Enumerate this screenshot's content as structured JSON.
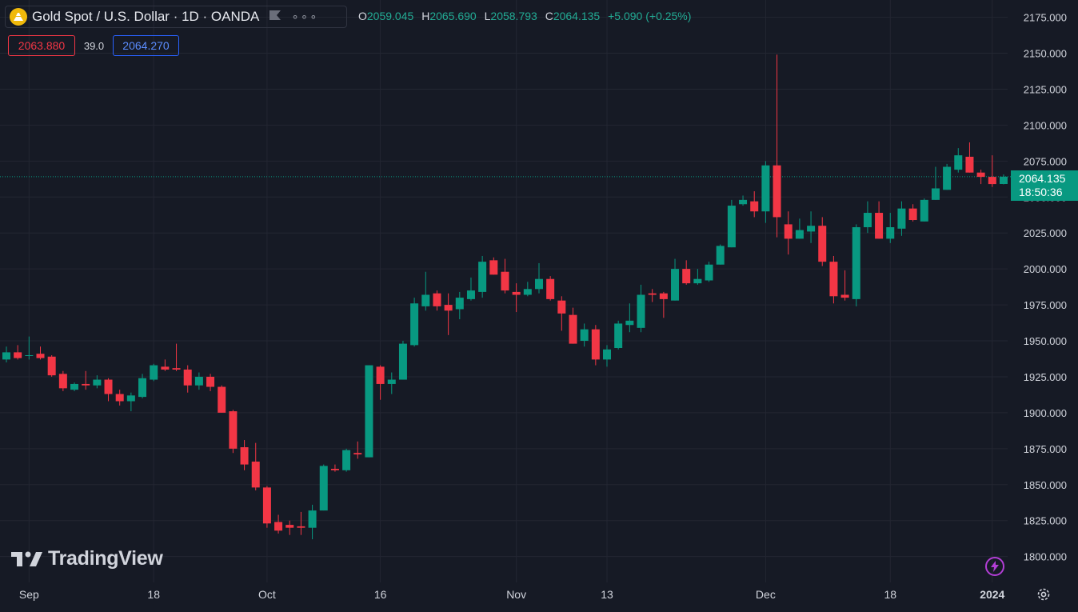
{
  "legend": {
    "symbol": "Gold Spot / U.S. Dollar",
    "interval": "1D",
    "broker": "OANDA",
    "ohlc": {
      "o_label": "O",
      "o": "2059.045",
      "h_label": "H",
      "h": "2065.690",
      "l_label": "L",
      "l": "2058.793",
      "c_label": "C",
      "c": "2064.135",
      "change": "+5.090 (+0.25%)"
    }
  },
  "trade": {
    "sell": "2063.880",
    "spread": "39.0",
    "buy": "2064.270"
  },
  "price_tag": {
    "price": "2064.135",
    "countdown": "18:50:36"
  },
  "watermark": "TradingView",
  "colors": {
    "up": "#089981",
    "down": "#f23645",
    "background": "#161a25",
    "grid": "#232632"
  },
  "icons": [
    "gold-coin-icon",
    "flag-icon",
    "more-dots-icon",
    "tradingview-logo-icon",
    "lightning-icon",
    "gear-icon"
  ],
  "chart_data": {
    "type": "candlestick",
    "y_ticks": [
      "2175.000",
      "2150.000",
      "2125.000",
      "2100.000",
      "2075.000",
      "2050.000",
      "2025.000",
      "2000.000",
      "1975.000",
      "1950.000",
      "1925.000",
      "1900.000",
      "1875.000",
      "1850.000",
      "1825.000",
      "1800.000"
    ],
    "ylim": [
      1782,
      2187
    ],
    "x_ticks": [
      {
        "label": "Sep",
        "i": 2
      },
      {
        "label": "18",
        "i": 13
      },
      {
        "label": "Oct",
        "i": 23
      },
      {
        "label": "16",
        "i": 33
      },
      {
        "label": "Nov",
        "i": 45
      },
      {
        "label": "13",
        "i": 53
      },
      {
        "label": "Dec",
        "i": 67
      },
      {
        "label": "18",
        "i": 78
      },
      {
        "label": "2024",
        "i": 87
      }
    ],
    "candles": [
      {
        "o": 1937,
        "h": 1946,
        "l": 1935,
        "c": 1942
      },
      {
        "o": 1942,
        "h": 1947,
        "l": 1937,
        "c": 1938
      },
      {
        "o": 1940,
        "h": 1953,
        "l": 1937,
        "c": 1940
      },
      {
        "o": 1941,
        "h": 1946,
        "l": 1937,
        "c": 1938
      },
      {
        "o": 1939,
        "h": 1940,
        "l": 1925,
        "c": 1926
      },
      {
        "o": 1927,
        "h": 1929,
        "l": 1915,
        "c": 1917
      },
      {
        "o": 1916,
        "h": 1921,
        "l": 1915,
        "c": 1920
      },
      {
        "o": 1920,
        "h": 1929,
        "l": 1916,
        "c": 1919
      },
      {
        "o": 1919,
        "h": 1926,
        "l": 1917,
        "c": 1923
      },
      {
        "o": 1923,
        "h": 1924,
        "l": 1908,
        "c": 1913
      },
      {
        "o": 1913,
        "h": 1916,
        "l": 1905,
        "c": 1908
      },
      {
        "o": 1908,
        "h": 1914,
        "l": 1901,
        "c": 1912
      },
      {
        "o": 1911,
        "h": 1927,
        "l": 1910,
        "c": 1924
      },
      {
        "o": 1923,
        "h": 1934,
        "l": 1922,
        "c": 1933
      },
      {
        "o": 1932,
        "h": 1937,
        "l": 1929,
        "c": 1930
      },
      {
        "o": 1931,
        "h": 1948,
        "l": 1929,
        "c": 1930
      },
      {
        "o": 1930,
        "h": 1933,
        "l": 1914,
        "c": 1919
      },
      {
        "o": 1919,
        "h": 1928,
        "l": 1916,
        "c": 1925
      },
      {
        "o": 1925,
        "h": 1927,
        "l": 1915,
        "c": 1918
      },
      {
        "o": 1918,
        "h": 1919,
        "l": 1900,
        "c": 1900
      },
      {
        "o": 1901,
        "h": 1902,
        "l": 1872,
        "c": 1875
      },
      {
        "o": 1876,
        "h": 1881,
        "l": 1860,
        "c": 1864
      },
      {
        "o": 1866,
        "h": 1879,
        "l": 1846,
        "c": 1848
      },
      {
        "o": 1848,
        "h": 1849,
        "l": 1820,
        "c": 1823
      },
      {
        "o": 1824,
        "h": 1829,
        "l": 1816,
        "c": 1818
      },
      {
        "o": 1822,
        "h": 1825,
        "l": 1815,
        "c": 1820
      },
      {
        "o": 1821,
        "h": 1831,
        "l": 1815,
        "c": 1820
      },
      {
        "o": 1820,
        "h": 1836,
        "l": 1812,
        "c": 1832
      },
      {
        "o": 1832,
        "h": 1864,
        "l": 1832,
        "c": 1863
      },
      {
        "o": 1861,
        "h": 1864,
        "l": 1859,
        "c": 1860
      },
      {
        "o": 1860,
        "h": 1875,
        "l": 1859,
        "c": 1874
      },
      {
        "o": 1872,
        "h": 1880,
        "l": 1868,
        "c": 1871
      },
      {
        "o": 1869,
        "h": 1933,
        "l": 1869,
        "c": 1933
      },
      {
        "o": 1932,
        "h": 1933,
        "l": 1909,
        "c": 1920
      },
      {
        "o": 1920,
        "h": 1928,
        "l": 1913,
        "c": 1923
      },
      {
        "o": 1923,
        "h": 1950,
        "l": 1923,
        "c": 1948
      },
      {
        "o": 1947,
        "h": 1980,
        "l": 1946,
        "c": 1976
      },
      {
        "o": 1974,
        "h": 1998,
        "l": 1971,
        "c": 1982
      },
      {
        "o": 1983,
        "h": 1985,
        "l": 1971,
        "c": 1974
      },
      {
        "o": 1975,
        "h": 1983,
        "l": 1954,
        "c": 1971
      },
      {
        "o": 1972,
        "h": 1984,
        "l": 1965,
        "c": 1980
      },
      {
        "o": 1979,
        "h": 1994,
        "l": 1978,
        "c": 1985
      },
      {
        "o": 1984,
        "h": 2009,
        "l": 1980,
        "c": 2005
      },
      {
        "o": 2006,
        "h": 2008,
        "l": 1996,
        "c": 1996
      },
      {
        "o": 1998,
        "h": 2007,
        "l": 1983,
        "c": 1985
      },
      {
        "o": 1984,
        "h": 1990,
        "l": 1970,
        "c": 1982
      },
      {
        "o": 1982,
        "h": 1991,
        "l": 1981,
        "c": 1986
      },
      {
        "o": 1986,
        "h": 2004,
        "l": 1983,
        "c": 1993
      },
      {
        "o": 1993,
        "h": 1995,
        "l": 1978,
        "c": 1979
      },
      {
        "o": 1978,
        "h": 1981,
        "l": 1957,
        "c": 1969
      },
      {
        "o": 1968,
        "h": 1973,
        "l": 1948,
        "c": 1948
      },
      {
        "o": 1950,
        "h": 1962,
        "l": 1946,
        "c": 1958
      },
      {
        "o": 1958,
        "h": 1961,
        "l": 1933,
        "c": 1937
      },
      {
        "o": 1937,
        "h": 1947,
        "l": 1932,
        "c": 1944
      },
      {
        "o": 1945,
        "h": 1964,
        "l": 1944,
        "c": 1962
      },
      {
        "o": 1961,
        "h": 1976,
        "l": 1956,
        "c": 1964
      },
      {
        "o": 1959,
        "h": 1989,
        "l": 1956,
        "c": 1982
      },
      {
        "o": 1983,
        "h": 1986,
        "l": 1977,
        "c": 1982
      },
      {
        "o": 1983,
        "h": 1984,
        "l": 1966,
        "c": 1979
      },
      {
        "o": 1978,
        "h": 2007,
        "l": 1978,
        "c": 2000
      },
      {
        "o": 2000,
        "h": 2006,
        "l": 1989,
        "c": 1990
      },
      {
        "o": 1990,
        "h": 2000,
        "l": 1989,
        "c": 1993
      },
      {
        "o": 1992,
        "h": 2005,
        "l": 1991,
        "c": 2003
      },
      {
        "o": 2003,
        "h": 2017,
        "l": 2003,
        "c": 2016
      },
      {
        "o": 2015,
        "h": 2048,
        "l": 2015,
        "c": 2044
      },
      {
        "o": 2045,
        "h": 2051,
        "l": 2044,
        "c": 2048
      },
      {
        "o": 2047,
        "h": 2054,
        "l": 2036,
        "c": 2040
      },
      {
        "o": 2040,
        "h": 2075,
        "l": 2032,
        "c": 2072
      },
      {
        "o": 2072,
        "h": 2149,
        "l": 2022,
        "c": 2036
      },
      {
        "o": 2031,
        "h": 2040,
        "l": 2010,
        "c": 2021
      },
      {
        "o": 2021,
        "h": 2035,
        "l": 2021,
        "c": 2027
      },
      {
        "o": 2026,
        "h": 2040,
        "l": 2018,
        "c": 2030
      },
      {
        "o": 2030,
        "h": 2036,
        "l": 2002,
        "c": 2005
      },
      {
        "o": 2005,
        "h": 2009,
        "l": 1976,
        "c": 1981
      },
      {
        "o": 1982,
        "h": 1999,
        "l": 1978,
        "c": 1980
      },
      {
        "o": 1979,
        "h": 2031,
        "l": 1974,
        "c": 2029
      },
      {
        "o": 2029,
        "h": 2047,
        "l": 2025,
        "c": 2039
      },
      {
        "o": 2039,
        "h": 2047,
        "l": 2021,
        "c": 2021
      },
      {
        "o": 2021,
        "h": 2039,
        "l": 2018,
        "c": 2029
      },
      {
        "o": 2028,
        "h": 2047,
        "l": 2023,
        "c": 2042
      },
      {
        "o": 2042,
        "h": 2045,
        "l": 2033,
        "c": 2034
      },
      {
        "o": 2033,
        "h": 2049,
        "l": 2033,
        "c": 2048
      },
      {
        "o": 2048,
        "h": 2071,
        "l": 2048,
        "c": 2056
      },
      {
        "o": 2055,
        "h": 2073,
        "l": 2055,
        "c": 2071
      },
      {
        "o": 2069,
        "h": 2084,
        "l": 2067,
        "c": 2079
      },
      {
        "o": 2078,
        "h": 2088,
        "l": 2067,
        "c": 2067
      },
      {
        "o": 2067,
        "h": 2069,
        "l": 2059,
        "c": 2064
      },
      {
        "o": 2064,
        "h": 2079,
        "l": 2057,
        "c": 2059
      },
      {
        "o": 2059.045,
        "h": 2065.69,
        "l": 2058.793,
        "c": 2064.135
      }
    ]
  }
}
